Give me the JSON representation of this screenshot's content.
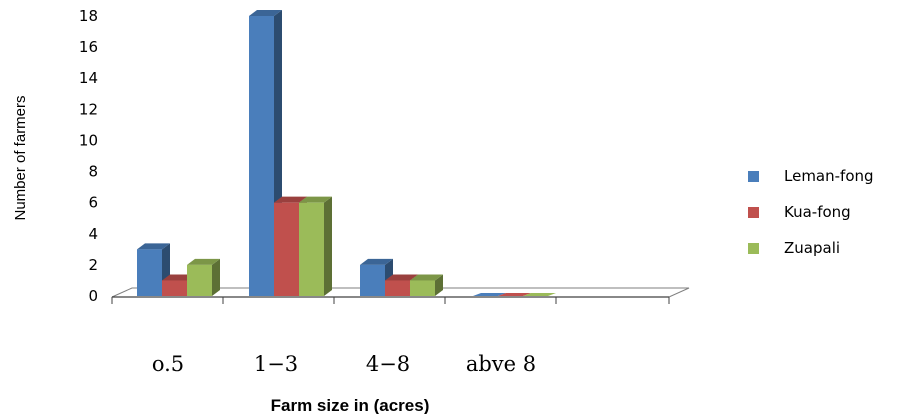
{
  "chart_data": {
    "type": "bar",
    "subtype": "3d-clustered-column",
    "categories": [
      "o.5",
      "1−3",
      "4−8",
      "abve 8"
    ],
    "series": [
      {
        "name": "Leman-fong",
        "values": [
          3,
          18,
          2,
          0
        ],
        "color": "#4a7ebb"
      },
      {
        "name": "Kua-fong",
        "values": [
          1,
          6,
          1,
          0
        ],
        "color": "#c0504d"
      },
      {
        "name": "Zuapali",
        "values": [
          2,
          6,
          1,
          0
        ],
        "color": "#9bbb59"
      }
    ],
    "xlabel": "Farm size in (acres)",
    "ylabel": "Number of farmers",
    "ylim": [
      0,
      18
    ],
    "yticks": [
      "0",
      "2",
      "4",
      "6",
      "8",
      "10",
      "12",
      "14",
      "16",
      "18"
    ],
    "legend_position": "right",
    "grid": false
  }
}
